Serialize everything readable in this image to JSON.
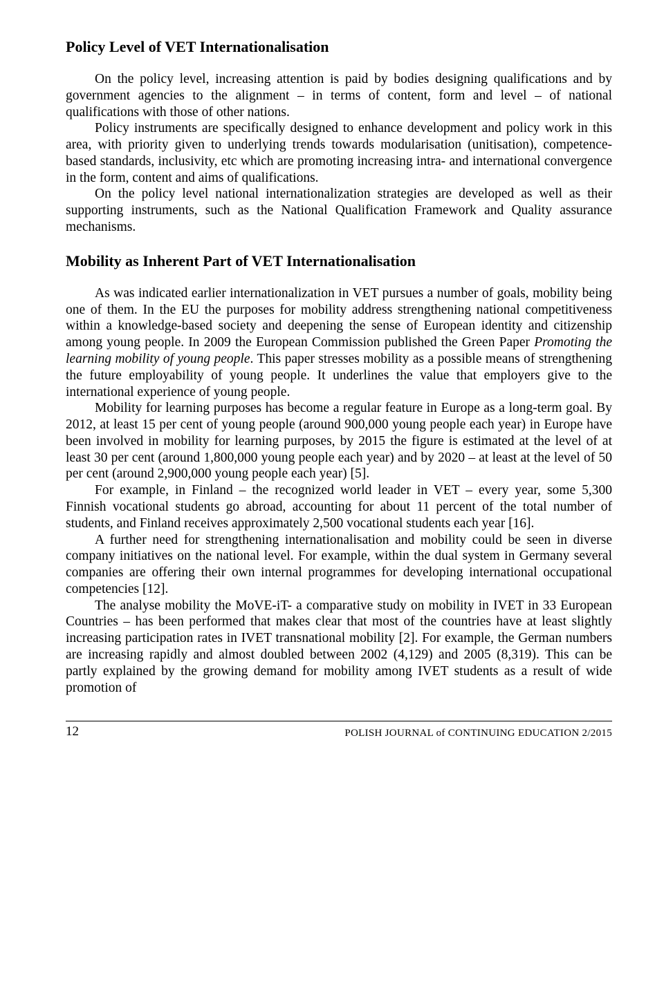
{
  "section1": {
    "heading": "Policy Level of VET Internationalisation",
    "p1": "On the policy level, increasing attention is paid by bodies designing qualifications and by government agencies to the alignment – in terms of content, form and level – of national qualifications with those of other nations.",
    "p2": "Policy instruments are specifically designed to enhance development and policy work in this area, with priority given to underlying trends towards modularisation (unitisation), competence-based standards, inclusivity, etc which are promoting increasing intra- and international convergence in the form, content and aims of qualifications.",
    "p3": "On the policy level national internationalization strategies are developed as well as their supporting instruments, such as the National Qualification Framework and Quality assurance mechanisms."
  },
  "section2": {
    "heading": "Mobility as Inherent Part of VET Internationalisation",
    "p1a": "As was indicated earlier internationalization in VET pursues a number of goals, mobility being one of them. In the EU the purposes for mobility address strengthening national competitiveness within a knowledge-based society and deepening the sense of European identity and citizenship among young people. In 2009 the European Commission published the Green Paper ",
    "p1_italic": "Promoting the learning mobility of young people",
    "p1b": ". This paper stresses mobility as a possible means of strengthening the future employability of young people. It underlines the value that employers give to the international experience of young people.",
    "p2": "Mobility for learning purposes has become a regular feature in Europe as a long-term goal. By 2012, at least 15 per cent of young people (around 900,000 young people each year) in Europe have been involved in mobility for learning purposes, by 2015 the figure is estimated at the level of at least 30 per cent (around 1,800,000 young people each year) and by 2020 – at least at the level of 50 per cent (around 2,900,000 young people each year) [5].",
    "p3": "For example, in Finland – the recognized world leader in VET – every year, some 5,300 Finnish vocational students go abroad, accounting for about 11 percent of the total number of students, and Finland receives approximately 2,500 vocational students each year [16].",
    "p4": "A further need for strengthening internationalisation and mobility could be seen in diverse company initiatives on the national level. For example, within the dual system in Germany several companies are offering their own internal programmes for developing international occupational competencies [12].",
    "p5": "The analyse mobility the MoVE-iT- a comparative study on mobility in IVET in 33 European Countries – has been performed that makes clear that most of the countries have at least slightly increasing participation rates in IVET transnational mobility [2]. For example, the German numbers are increasing rapidly and almost doubled between 2002 (4,129) and 2005 (8,319). This can be partly explained by the growing demand for mobility among IVET students as a result of wide promotion of"
  },
  "footer": {
    "page_number": "12",
    "journal": "POLISH  JOURNAL  of  CONTINUING  EDUCATION  2/2015"
  }
}
